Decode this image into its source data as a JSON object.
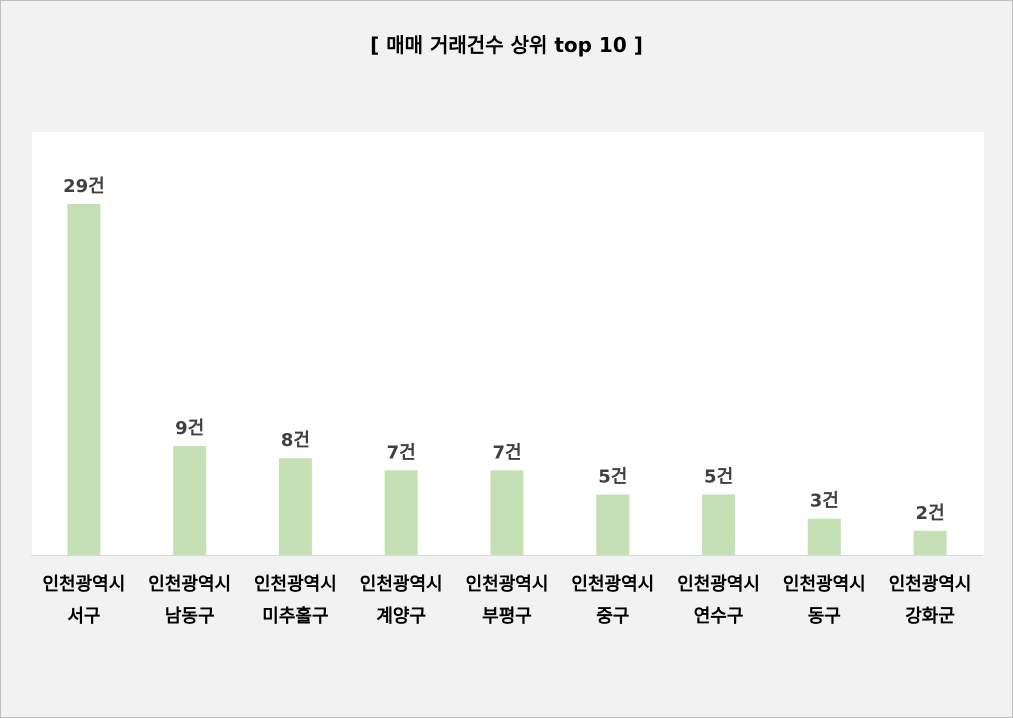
{
  "chart_data": {
    "type": "bar",
    "title": "[ 매매 거래건수 상위 top 10 ]",
    "xlabel": "",
    "ylabel": "",
    "ylim": [
      0,
      32
    ],
    "grid": false,
    "legend": "none",
    "bar_color": "#c5e0b4",
    "value_suffix": "건",
    "categories": [
      [
        "인천광역시",
        "서구"
      ],
      [
        "인천광역시",
        "남동구"
      ],
      [
        "인천광역시",
        "미추홀구"
      ],
      [
        "인천광역시",
        "계양구"
      ],
      [
        "인천광역시",
        "부평구"
      ],
      [
        "인천광역시",
        "중구"
      ],
      [
        "인천광역시",
        "연수구"
      ],
      [
        "인천광역시",
        "동구"
      ],
      [
        "인천광역시",
        "강화군"
      ]
    ],
    "values": [
      29,
      9,
      8,
      7,
      7,
      5,
      5,
      3,
      2
    ],
    "data_labels": [
      "29건",
      "9건",
      "8건",
      "7건",
      "7건",
      "5건",
      "5건",
      "3건",
      "2건"
    ]
  }
}
